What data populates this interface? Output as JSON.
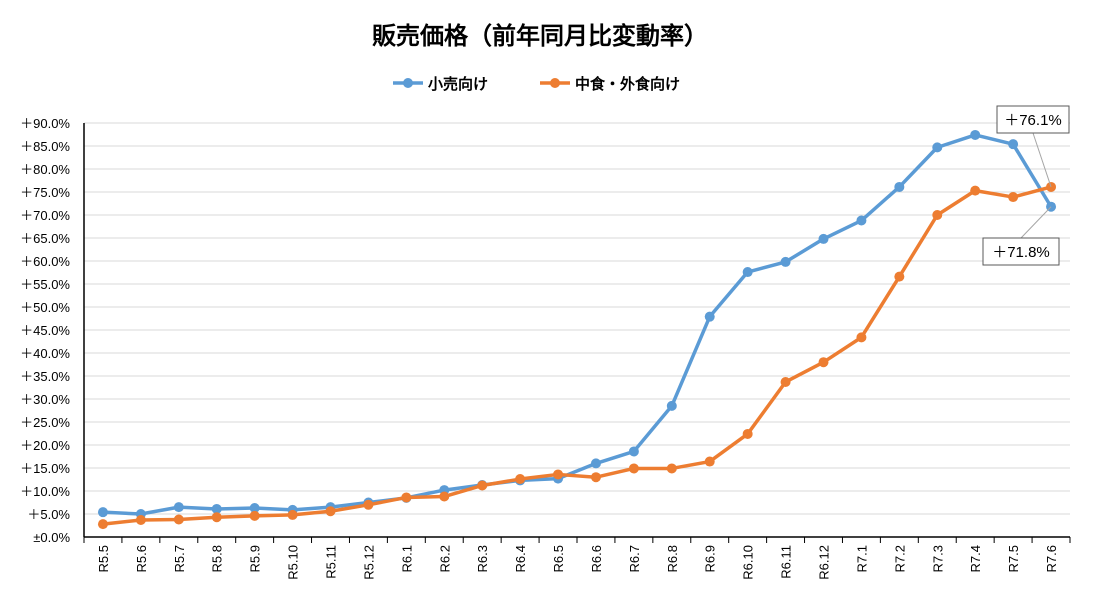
{
  "chart_data": {
    "type": "line",
    "title": "販売価格（前年同月比変動率）",
    "categories": [
      "R5.5",
      "R5.6",
      "R5.7",
      "R5.8",
      "R5.9",
      "R5.10",
      "R5.11",
      "R5.12",
      "R6.1",
      "R6.2",
      "R6.3",
      "R6.4",
      "R6.5",
      "R6.6",
      "R6.7",
      "R6.8",
      "R6.9",
      "R6.10",
      "R6.11",
      "R6.12",
      "R7.1",
      "R7.2",
      "R7.3",
      "R7.4",
      "R7.5",
      "R7.6"
    ],
    "series": [
      {
        "name": "小売向け",
        "color": "#5B9BD5",
        "values": [
          5.4,
          5.0,
          6.5,
          6.1,
          6.3,
          5.9,
          6.5,
          7.5,
          8.5,
          10.2,
          11.3,
          12.3,
          12.7,
          16.0,
          18.6,
          28.5,
          47.9,
          57.6,
          59.8,
          64.8,
          68.8,
          76.1,
          84.7,
          87.4,
          85.4,
          71.8
        ]
      },
      {
        "name": "中食・外食向け",
        "color": "#ED7D31",
        "values": [
          2.8,
          3.7,
          3.8,
          4.3,
          4.6,
          4.8,
          5.6,
          7.0,
          8.6,
          8.8,
          11.2,
          12.6,
          13.6,
          13.0,
          14.9,
          14.9,
          16.4,
          22.4,
          33.7,
          38.0,
          43.4,
          56.6,
          70.0,
          75.3,
          73.9,
          76.1
        ]
      }
    ],
    "yticks": [
      "±0.0%",
      "＋5.0%",
      "＋10.0%",
      "＋15.0%",
      "＋20.0%",
      "＋25.0%",
      "＋30.0%",
      "＋35.0%",
      "＋40.0%",
      "＋45.0%",
      "＋50.0%",
      "＋55.0%",
      "＋60.0%",
      "＋65.0%",
      "＋70.0%",
      "＋75.0%",
      "＋80.0%",
      "＋85.0%",
      "＋90.0%"
    ],
    "ylim": [
      0,
      90
    ],
    "grid": true,
    "legend_position": "top",
    "annotations": [
      {
        "text": "＋76.1%",
        "series": 1,
        "index": 25
      },
      {
        "text": "＋71.8%",
        "series": 0,
        "index": 25
      }
    ]
  }
}
